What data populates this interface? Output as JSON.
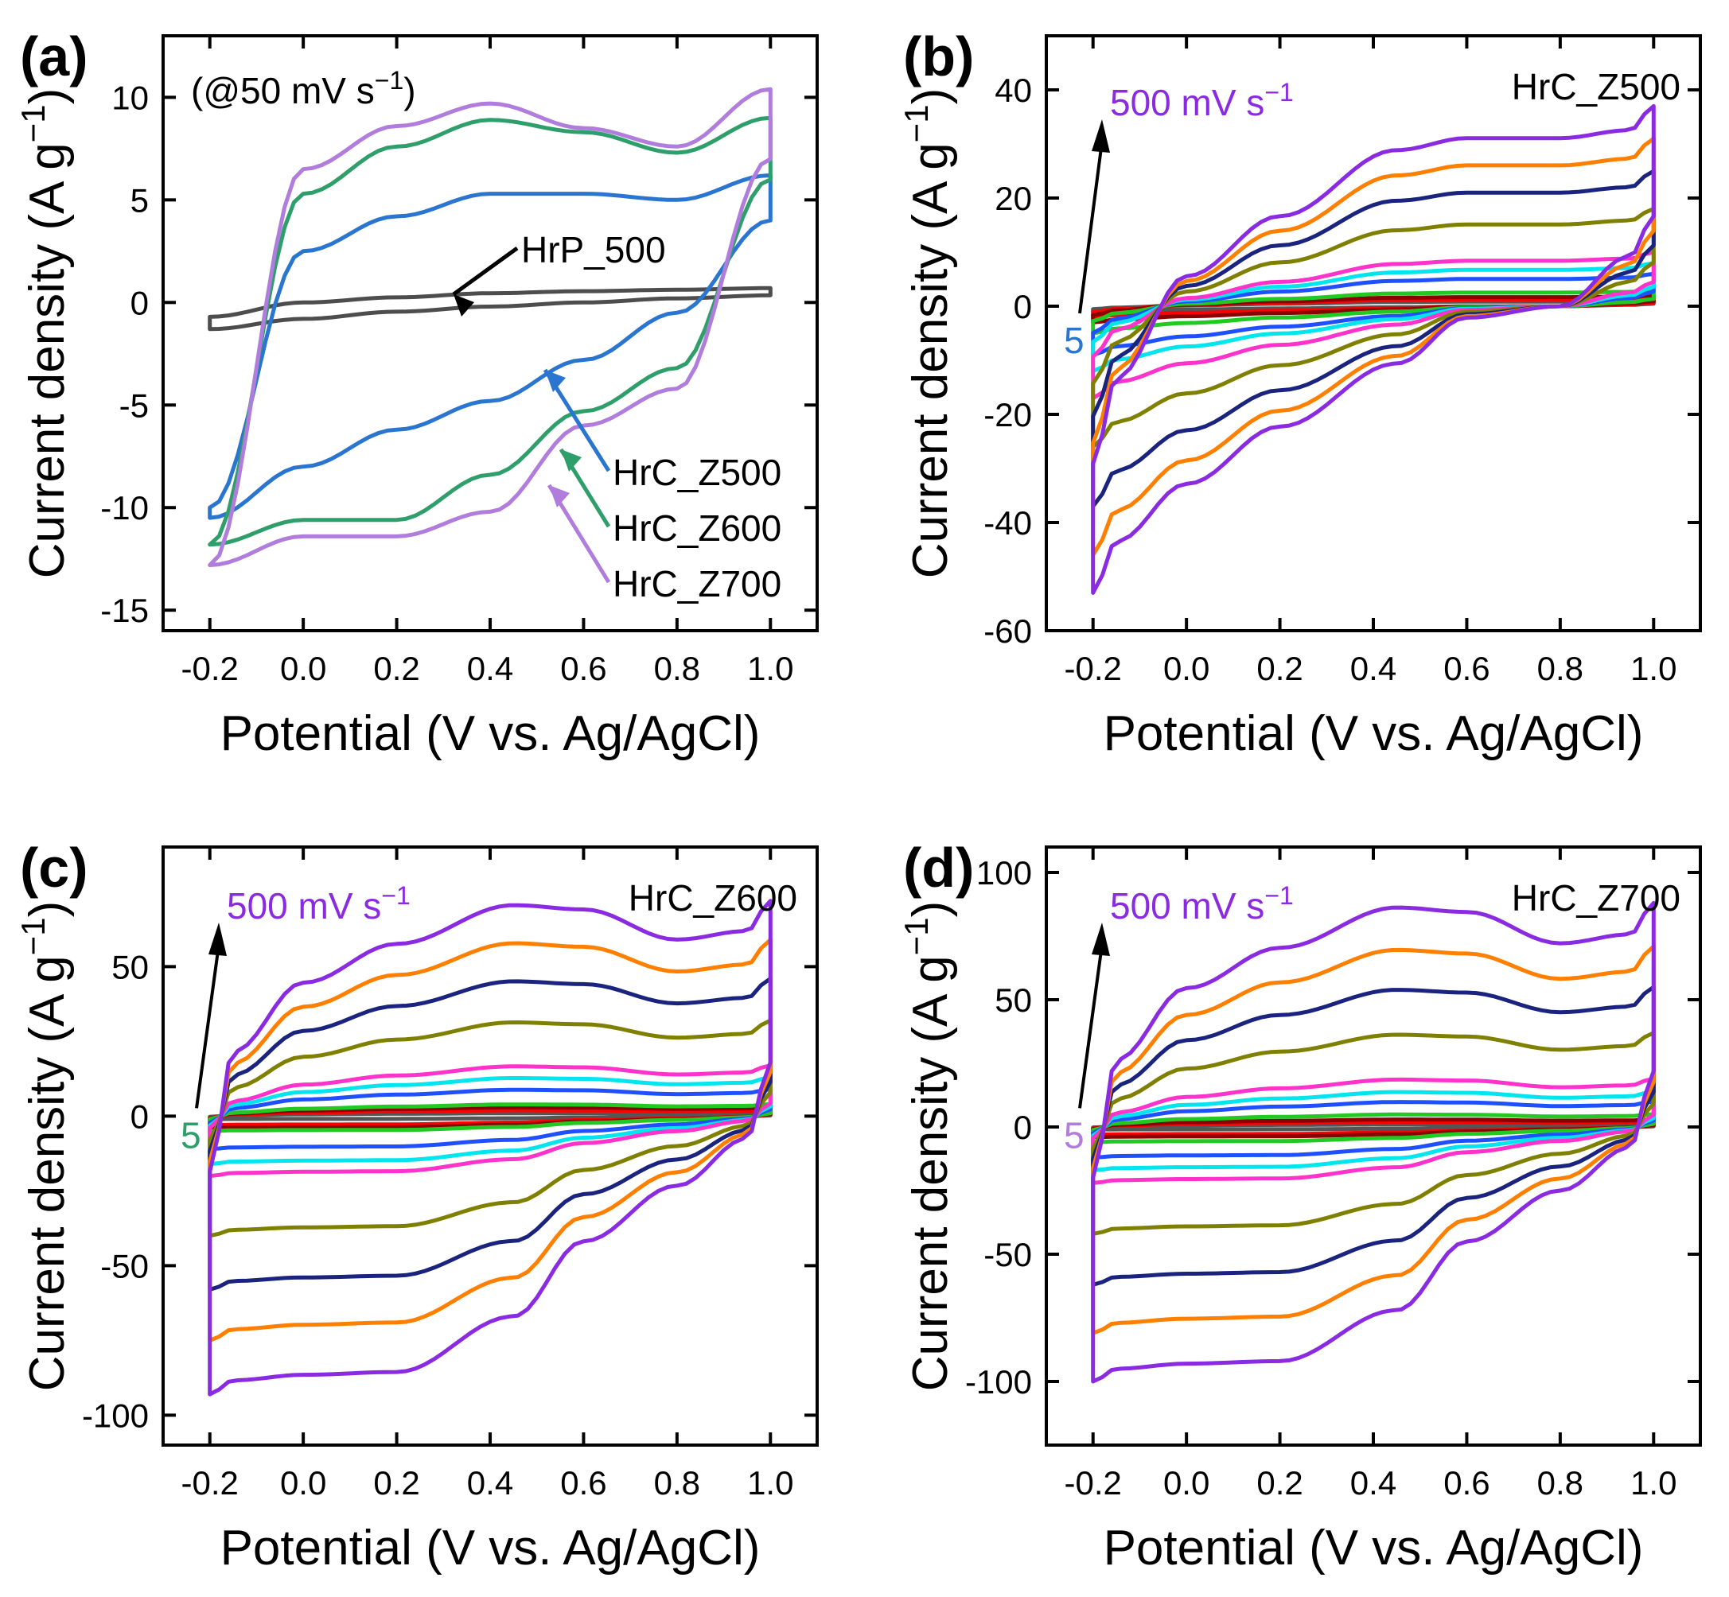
{
  "chart_data": [
    {
      "type": "line",
      "panel_label": "(a)",
      "xlabel": "Potential (V vs. Ag/AgCl)",
      "ylabel": "Current density (A g",
      "ylabel_sup": "−1",
      "ylabel_close": ")",
      "xlim": [
        -0.3,
        1.1
      ],
      "ylim": [
        -16,
        13
      ],
      "xticks": [
        "-0.2",
        "0.0",
        "0.2",
        "0.4",
        "0.6",
        "0.8",
        "1.0"
      ],
      "xtick_values": [
        -0.2,
        0.0,
        0.2,
        0.4,
        0.6,
        0.8,
        1.0
      ],
      "yticks": [
        "10",
        "5",
        "0",
        "-5",
        "-10",
        "-15"
      ],
      "ytick_values": [
        10,
        5,
        0,
        -5,
        -10,
        -15
      ],
      "scan_rate_label": "(@50 mV s",
      "scan_rate_sup": "−1",
      "scan_rate_close": ")",
      "series": [
        {
          "name": "HrP_500",
          "color": "#4d4d4d",
          "x": [
            -0.2,
            0.0,
            0.2,
            0.4,
            0.6,
            0.8,
            1.0
          ],
          "upper": [
            -0.7,
            0.0,
            0.25,
            0.45,
            0.55,
            0.62,
            0.7
          ],
          "lower": [
            -1.3,
            -0.8,
            -0.45,
            -0.2,
            0.0,
            0.2,
            0.35
          ]
        },
        {
          "name": "HrC_Z500",
          "color": "#2a75d0",
          "x": [
            -0.2,
            0.0,
            0.2,
            0.4,
            0.6,
            0.8,
            1.0
          ],
          "upper": [
            -10.0,
            2.5,
            4.2,
            5.3,
            5.3,
            5.0,
            6.2
          ],
          "lower": [
            -10.5,
            -8.0,
            -6.2,
            -4.8,
            -2.8,
            -0.5,
            4.0
          ]
        },
        {
          "name": "HrC_Z600",
          "color": "#2e9e6b",
          "x": [
            -0.2,
            0.0,
            0.2,
            0.4,
            0.6,
            0.8,
            1.0
          ],
          "upper": [
            -11.8,
            5.3,
            7.6,
            8.9,
            8.3,
            7.3,
            9.0
          ],
          "lower": [
            -11.8,
            -10.6,
            -10.6,
            -8.4,
            -5.3,
            -3.2,
            6.0
          ]
        },
        {
          "name": "HrC_Z700",
          "color": "#b07ddc",
          "x": [
            -0.2,
            0.0,
            0.2,
            0.4,
            0.6,
            0.8,
            1.0
          ],
          "upper": [
            -12.8,
            6.5,
            8.6,
            9.7,
            8.5,
            7.6,
            10.4
          ],
          "lower": [
            -12.8,
            -11.4,
            -11.4,
            -10.2,
            -6.0,
            -4.2,
            7.0
          ]
        }
      ],
      "annotations": [
        "HrP_500",
        "HrC_Z500",
        "HrC_Z600",
        "HrC_Z700"
      ]
    },
    {
      "type": "line",
      "panel_label": "(b)",
      "sample": "HrC_Z500",
      "xlabel": "Potential (V vs. Ag/AgCl)",
      "ylabel": "Current density (A g",
      "ylabel_sup": "−1",
      "ylabel_close": ")",
      "xlim": [
        -0.3,
        1.1
      ],
      "ylim": [
        -60,
        50
      ],
      "xticks": [
        "-0.2",
        "0.0",
        "0.2",
        "0.4",
        "0.6",
        "0.8",
        "1.0"
      ],
      "xtick_values": [
        -0.2,
        0.0,
        0.2,
        0.4,
        0.6,
        0.8,
        1.0
      ],
      "yticks": [
        "40",
        "20",
        "0",
        "-20",
        "-40",
        "-60"
      ],
      "ytick_values": [
        40,
        20,
        0,
        -20,
        -40,
        -60
      ],
      "arrow_low": "5",
      "arrow_low_color": "#2a75d0",
      "arrow_high": "500 mV s",
      "arrow_high_sup": "−1",
      "arrow_high_color": "#8a2be2",
      "peak_curve_colors": [
        "#8a2be2",
        "#ff8000",
        "#1a237e",
        "#808000",
        "#ff33cc",
        "#00e5ee",
        "#1e50ff",
        "#22c922",
        "#8b0000",
        "#ff0000",
        "#555555"
      ],
      "peak_upper": [
        37,
        31,
        25,
        18,
        10,
        8,
        6,
        3,
        2,
        1.5,
        1
      ],
      "peak_lower": [
        -53,
        -46,
        -37,
        -26,
        -17,
        -12,
        -9,
        -5,
        -3,
        -2,
        -1
      ]
    },
    {
      "type": "line",
      "panel_label": "(c)",
      "sample": "HrC_Z600",
      "xlabel": "Potential (V vs. Ag/AgCl)",
      "ylabel": "Current density (A g",
      "ylabel_sup": "−1",
      "ylabel_close": ")",
      "xlim": [
        -0.3,
        1.1
      ],
      "ylim": [
        -110,
        90
      ],
      "xticks": [
        "-0.2",
        "0.0",
        "0.2",
        "0.4",
        "0.6",
        "0.8",
        "1.0"
      ],
      "xtick_values": [
        -0.2,
        0.0,
        0.2,
        0.4,
        0.6,
        0.8,
        1.0
      ],
      "yticks": [
        "50",
        "0",
        "-50",
        "-100"
      ],
      "ytick_values": [
        50,
        0,
        -50,
        -100
      ],
      "arrow_low": "5",
      "arrow_low_color": "#2e9e6b",
      "arrow_high": "500 mV s",
      "arrow_high_sup": "−1",
      "arrow_high_color": "#8a2be2",
      "peak_curve_colors": [
        "#8a2be2",
        "#ff8000",
        "#1a237e",
        "#808000",
        "#ff33cc",
        "#00e5ee",
        "#1e50ff",
        "#22c922",
        "#8b0000",
        "#ff0000",
        "#555555"
      ],
      "peak_upper": [
        72,
        59,
        46,
        32,
        17,
        13,
        9,
        4,
        3,
        2,
        1
      ],
      "peak_lower": [
        -93,
        -75,
        -58,
        -40,
        -20,
        -16,
        -11,
        -5,
        -4,
        -3,
        -1
      ]
    },
    {
      "type": "line",
      "panel_label": "(d)",
      "sample": "HrC_Z700",
      "xlabel": "Potential (V vs. Ag/AgCl)",
      "ylabel": "Current density (A g",
      "ylabel_sup": "−1",
      "ylabel_close": ")",
      "xlim": [
        -0.3,
        1.1
      ],
      "ylim": [
        -125,
        110
      ],
      "xticks": [
        "-0.2",
        "0.0",
        "0.2",
        "0.4",
        "0.6",
        "0.8",
        "1.0"
      ],
      "xtick_values": [
        -0.2,
        0.0,
        0.2,
        0.4,
        0.6,
        0.8,
        1.0
      ],
      "yticks": [
        "100",
        "50",
        "0",
        "-50",
        "-100"
      ],
      "ytick_values": [
        100,
        50,
        0,
        -50,
        -100
      ],
      "arrow_low": "5",
      "arrow_low_color": "#b07ddc",
      "arrow_high": "500 mV s",
      "arrow_high_sup": "−1",
      "arrow_high_color": "#8a2be2",
      "peak_curve_colors": [
        "#8a2be2",
        "#ff8000",
        "#1a237e",
        "#808000",
        "#ff33cc",
        "#00e5ee",
        "#1e50ff",
        "#22c922",
        "#8b0000",
        "#ff0000",
        "#555555"
      ],
      "peak_upper": [
        88,
        71,
        55,
        37,
        19,
        14,
        10,
        5,
        3,
        2,
        1
      ],
      "peak_lower": [
        -100,
        -81,
        -62,
        -42,
        -22,
        -17,
        -12,
        -6,
        -4,
        -3,
        -1
      ]
    }
  ]
}
